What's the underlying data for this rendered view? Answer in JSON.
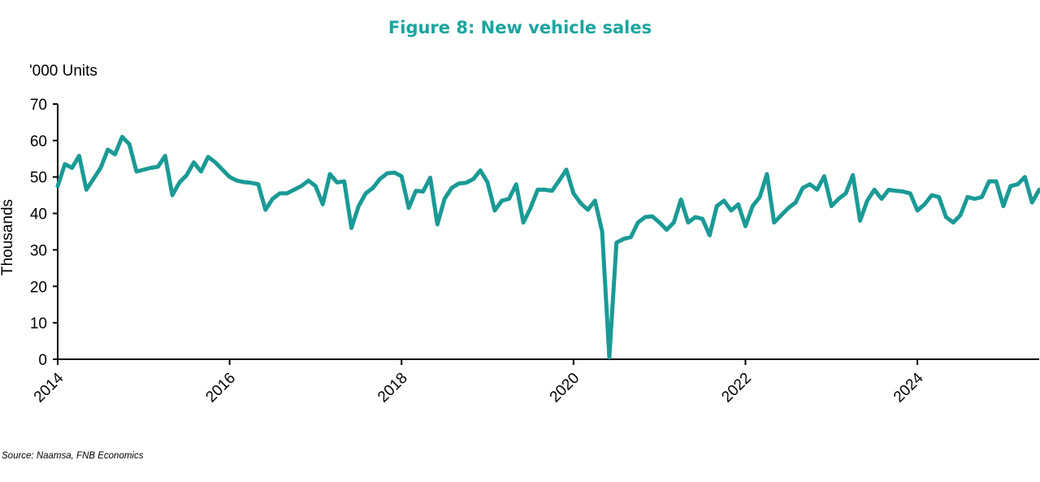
{
  "colors": {
    "accent": "#1a9a96",
    "title": "#1aa59f",
    "axis": "#000000",
    "text": "#000000"
  },
  "chart_data": {
    "type": "line",
    "title": "Figure 8: New vehicle sales",
    "unit_label": "'000 Units",
    "ylabel": "Thousands",
    "xlabel": "",
    "source": "Source: Naamsa, FNB Economics",
    "grid": false,
    "legend": "none",
    "ylim": [
      0,
      70
    ],
    "yticks": [
      0,
      10,
      20,
      30,
      40,
      50,
      60,
      70
    ],
    "xlim": [
      "2014-01",
      "2025-06"
    ],
    "xticks": [
      "2014",
      "2016",
      "2018",
      "2020",
      "2022",
      "2024"
    ],
    "series": [
      {
        "x": [
          "2014-01",
          "2014-02",
          "2014-03",
          "2014-04",
          "2014-05",
          "2014-06",
          "2014-07",
          "2014-08",
          "2014-09",
          "2014-10",
          "2014-11",
          "2014-12",
          "2015-01",
          "2015-02",
          "2015-03",
          "2015-04",
          "2015-05",
          "2015-06",
          "2015-07",
          "2015-08",
          "2015-09",
          "2015-10",
          "2015-11",
          "2015-12",
          "2016-01",
          "2016-02",
          "2016-03",
          "2016-04",
          "2016-05",
          "2016-06",
          "2016-07",
          "2016-08",
          "2016-09",
          "2016-10",
          "2016-11",
          "2016-12",
          "2017-01",
          "2017-02",
          "2017-03",
          "2017-04",
          "2017-05",
          "2017-06",
          "2017-07",
          "2017-08",
          "2017-09",
          "2017-10",
          "2017-11",
          "2017-12",
          "2018-01",
          "2018-02",
          "2018-03",
          "2018-04",
          "2018-05",
          "2018-06",
          "2018-07",
          "2018-08",
          "2018-09",
          "2018-10",
          "2018-11",
          "2018-12",
          "2019-01",
          "2019-02",
          "2019-03",
          "2019-04",
          "2019-05",
          "2019-06",
          "2019-07",
          "2019-08",
          "2019-09",
          "2019-10",
          "2019-11",
          "2019-12",
          "2020-01",
          "2020-02",
          "2020-03",
          "2020-04",
          "2020-05",
          "2020-06",
          "2020-07",
          "2020-08",
          "2020-09",
          "2020-10",
          "2020-11",
          "2020-12",
          "2021-01",
          "2021-02",
          "2021-03",
          "2021-04",
          "2021-05",
          "2021-06",
          "2021-07",
          "2021-08",
          "2021-09",
          "2021-10",
          "2021-11",
          "2021-12",
          "2022-01",
          "2022-02",
          "2022-03",
          "2022-04",
          "2022-05",
          "2022-06",
          "2022-07",
          "2022-08",
          "2022-09",
          "2022-10",
          "2022-11",
          "2022-12",
          "2023-01",
          "2023-02",
          "2023-03",
          "2023-04",
          "2023-05",
          "2023-06",
          "2023-07",
          "2023-08",
          "2023-09",
          "2023-10",
          "2023-11",
          "2023-12",
          "2024-01",
          "2024-02",
          "2024-03",
          "2024-04",
          "2024-05",
          "2024-06",
          "2024-07",
          "2024-08",
          "2024-09",
          "2024-10",
          "2024-11",
          "2024-12",
          "2025-01",
          "2025-02",
          "2025-03",
          "2025-04",
          "2025-05",
          "2025-06"
        ],
        "values": [
          47.5,
          53.5,
          52.5,
          55.8,
          46.5,
          49.5,
          52.5,
          57.5,
          56.2,
          61.0,
          59.0,
          51.5,
          52.0,
          52.5,
          52.8,
          55.8,
          45.0,
          48.5,
          50.5,
          54.0,
          51.5,
          55.5,
          54.0,
          52.0,
          50.0,
          49.0,
          48.6,
          48.4,
          48.0,
          41.0,
          44.0,
          45.5,
          45.5,
          46.5,
          47.5,
          49.0,
          47.5,
          42.5,
          50.8,
          48.5,
          48.8,
          36.0,
          42.0,
          45.5,
          47.0,
          49.5,
          51.0,
          51.2,
          50.2,
          41.5,
          46.2,
          46.0,
          49.8,
          37.0,
          44.0,
          47.0,
          48.2,
          48.4,
          49.4,
          51.8,
          48.5,
          40.8,
          43.5,
          44.0,
          48.0,
          37.5,
          41.5,
          46.5,
          46.5,
          46.2,
          49.0,
          52.0,
          45.5,
          42.8,
          41.0,
          43.5,
          35.0,
          0.5,
          32.0,
          33.0,
          33.5,
          37.5,
          39.0,
          39.2,
          37.5,
          35.5,
          37.5,
          43.8,
          37.5,
          39.0,
          38.5,
          34.0,
          42.0,
          43.5,
          40.8,
          42.5,
          36.5,
          42.0,
          44.5,
          50.8,
          37.5,
          39.5,
          41.5,
          43.0,
          47.0,
          48.0,
          46.5,
          50.2,
          42.0,
          44.0,
          45.5,
          50.5,
          38.0,
          43.5,
          46.5,
          44.0,
          46.5,
          46.2,
          46.0,
          45.5,
          40.8,
          42.5,
          45.0,
          44.5,
          39.0,
          37.5,
          39.5,
          44.5,
          44.0,
          44.5,
          48.8,
          48.8,
          42.0,
          47.5,
          48.0,
          50.0,
          43.0,
          46.5
        ]
      }
    ]
  }
}
